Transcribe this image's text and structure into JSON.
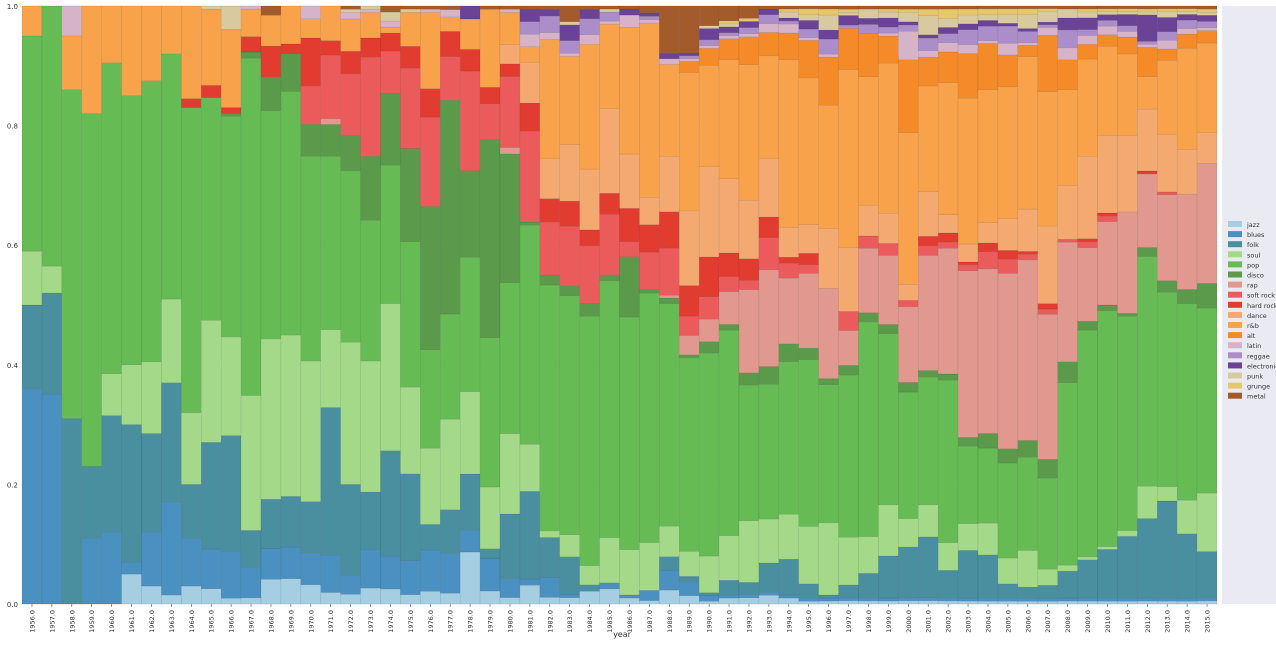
{
  "chart_data": {
    "type": "bar",
    "stacked": true,
    "normalized": true,
    "xlabel": "year",
    "ylabel": "",
    "ylim": [
      0,
      1
    ],
    "yticks": [
      "0.0",
      "0.2",
      "0.4",
      "0.6",
      "0.8",
      "1.0"
    ],
    "legend_position": "right",
    "grid": true,
    "categories": [
      "1956.0",
      "1957.0",
      "1958.0",
      "1959.0",
      "1960.0",
      "1961.0",
      "1962.0",
      "1963.0",
      "1964.0",
      "1965.0",
      "1966.0",
      "1967.0",
      "1968.0",
      "1969.0",
      "1970.0",
      "1971.0",
      "1972.0",
      "1973.0",
      "1974.0",
      "1975.0",
      "1976.0",
      "1977.0",
      "1978.0",
      "1979.0",
      "1980.0",
      "1981.0",
      "1982.0",
      "1983.0",
      "1984.0",
      "1985.0",
      "1986.0",
      "1987.0",
      "1988.0",
      "1989.0",
      "1990.0",
      "1991.0",
      "1992.0",
      "1993.0",
      "1994.0",
      "1995.0",
      "1996.0",
      "1997.0",
      "1998.0",
      "1999.0",
      "2000.0",
      "2001.0",
      "2002.0",
      "2003.0",
      "2004.0",
      "2005.0",
      "2006.0",
      "2007.0",
      "2008.0",
      "2009.0",
      "2010.0",
      "2011.0",
      "2012.0",
      "2013.0",
      "2014.0",
      "2015.0"
    ],
    "series": [
      {
        "name": "jazz",
        "color": "#a6cee3",
        "values": [
          0,
          0,
          0,
          0,
          0,
          0.05,
          0.03,
          0.015,
          0.03,
          0.025,
          0.01,
          0.01,
          0.04,
          0.04,
          0.03,
          0.02,
          0.015,
          0.025,
          0.025,
          0.015,
          0.02,
          0.015,
          0.06,
          0.02,
          0.01,
          0.03,
          0.01,
          0.01,
          0.02,
          0.025,
          0.01,
          0.005,
          0.025,
          0.015,
          0.005,
          0.01,
          0.01,
          0.015,
          0.01,
          0.005,
          0.005,
          0.005,
          0.005,
          0.005,
          0.005,
          0.005,
          0.005,
          0.005,
          0.005,
          0.005,
          0.005,
          0.005,
          0.005,
          0.005,
          0.005,
          0.005,
          0.005,
          0.005,
          0.005,
          0.005
        ]
      },
      {
        "name": "blues",
        "color": "#4a90c0",
        "values": [
          0.36,
          0.35,
          0,
          0.11,
          0.12,
          0.02,
          0.09,
          0.155,
          0.08,
          0.065,
          0.08,
          0.05,
          0.05,
          0.05,
          0.05,
          0.065,
          0.03,
          0.06,
          0.055,
          0.055,
          0.065,
          0.055,
          0.025,
          0.05,
          0.03,
          0.01,
          0.03,
          0.005,
          0,
          0.01,
          0.005,
          0.015,
          0.035,
          0.025,
          0.01,
          0.005,
          0.005,
          0.005,
          0.005,
          0.005,
          0.005,
          0.005,
          0.005,
          0.005,
          0.005,
          0.005,
          0.005,
          0.005,
          0.005,
          0.005,
          0.005,
          0.005,
          0.005,
          0.005,
          0.005,
          0.005,
          0.005,
          0.005,
          0.005,
          0.005
        ]
      },
      {
        "name": "folk",
        "color": "#4a8fa0",
        "values": [
          0.14,
          0.17,
          0.31,
          0.12,
          0.195,
          0.23,
          0.165,
          0.2,
          0.09,
          0.175,
          0.2,
          0.06,
          0.08,
          0.08,
          0.08,
          0.255,
          0.14,
          0.09,
          0.175,
          0.14,
          0.04,
          0.06,
          0.065,
          0.015,
          0.1,
          0.14,
          0.06,
          0.06,
          0.01,
          0,
          0,
          0,
          0.025,
          0.01,
          0.005,
          0.025,
          0.02,
          0.05,
          0.06,
          0.025,
          0.005,
          0.02,
          0.04,
          0.07,
          0.08,
          0.095,
          0.045,
          0.08,
          0.075,
          0.025,
          0.02,
          0.025,
          0.045,
          0.065,
          0.085,
          0.11,
          0.135,
          0.17,
          0.115,
          0.075
        ]
      },
      {
        "name": "soul",
        "color": "#a4d98a",
        "values": [
          0.09,
          0.045,
          0,
          0,
          0.07,
          0.1,
          0.12,
          0.14,
          0.12,
          0.2,
          0.17,
          0.22,
          0.26,
          0.255,
          0.22,
          0.135,
          0.22,
          0.205,
          0.245,
          0.14,
          0.12,
          0.125,
          0.095,
          0.095,
          0.125,
          0.075,
          0.01,
          0.035,
          0.03,
          0.075,
          0.075,
          0.07,
          0.055,
          0.045,
          0.065,
          0.075,
          0.1,
          0.075,
          0.075,
          0.1,
          0.12,
          0.075,
          0.06,
          0.085,
          0.045,
          0.05,
          0.045,
          0.045,
          0.055,
          0.045,
          0.065,
          0.03,
          0.01,
          0.005,
          0.005,
          0.01,
          0.055,
          0.025,
          0.06,
          0.095
        ]
      },
      {
        "name": "pop",
        "color": "#66bb55",
        "values": [
          0.36,
          0.435,
          0.55,
          0.59,
          0.52,
          0.45,
          0.47,
          0.41,
          0.51,
          0.365,
          0.38,
          0.55,
          0.37,
          0.385,
          0.32,
          0.3,
          0.265,
          0.22,
          0.23,
          0.235,
          0.155,
          0.145,
          0.155,
          0.23,
          0.235,
          0.35,
          0.37,
          0.38,
          0.39,
          0.425,
          0.385,
          0.365,
          0.4,
          0.35,
          0.36,
          0.345,
          0.22,
          0.23,
          0.255,
          0.29,
          0.23,
          0.255,
          0.35,
          0.285,
          0.2,
          0.2,
          0.265,
          0.13,
          0.13,
          0.165,
          0.165,
          0.17,
          0.305,
          0.385,
          0.41,
          0.38,
          0.39,
          0.34,
          0.35,
          0.3
        ]
      },
      {
        "name": "disco",
        "color": "#5b9a4b",
        "values": [
          0,
          0,
          0,
          0,
          0,
          0,
          0,
          0,
          0,
          0,
          0.005,
          0.01,
          0.055,
          0.06,
          0.05,
          0.055,
          0.055,
          0.1,
          0.12,
          0.15,
          0.225,
          0.295,
          0.1,
          0.305,
          0.2,
          0.005,
          0.015,
          0.015,
          0.02,
          0.01,
          0.1,
          0.005,
          0.01,
          0.005,
          0.02,
          0.01,
          0.02,
          0.03,
          0.03,
          0.02,
          0.01,
          0.015,
          0.015,
          0.015,
          0.015,
          0.01,
          0.01,
          0.015,
          0.025,
          0.025,
          0.03,
          0.035,
          0.035,
          0.015,
          0.01,
          0.005,
          0.015,
          0.02,
          0.025,
          0.04
        ]
      },
      {
        "name": "rap",
        "color": "#e0988f",
        "values": [
          0,
          0,
          0,
          0,
          0,
          0,
          0,
          0,
          0,
          0,
          0,
          0,
          0,
          0,
          0,
          0.01,
          0,
          0,
          0,
          0,
          0,
          0,
          0,
          0,
          0.01,
          0,
          0,
          0,
          0,
          0,
          0,
          0,
          0.005,
          0.035,
          0.04,
          0.055,
          0.135,
          0.165,
          0.11,
          0.13,
          0.15,
          0.055,
          0.105,
          0.115,
          0.12,
          0.18,
          0.205,
          0.28,
          0.285,
          0.305,
          0.32,
          0.27,
          0.2,
          0.125,
          0.145,
          0.18,
          0.125,
          0.15,
          0.17,
          0.195
        ]
      },
      {
        "name": "soft rock",
        "color": "#eb5b5c",
        "values": [
          0,
          0,
          0,
          0,
          0,
          0,
          0,
          0,
          0,
          0,
          0,
          0,
          0,
          0,
          0.06,
          0.11,
          0.095,
          0.155,
          0.07,
          0.13,
          0.14,
          0.06,
          0.115,
          0.055,
          0.11,
          0.145,
          0.08,
          0.095,
          0.09,
          0.1,
          0.025,
          0.055,
          0.085,
          0.035,
          0.04,
          0.025,
          0.015,
          0.055,
          0.025,
          0.015,
          0,
          0.03,
          0.02,
          0.02,
          0.01,
          0.015,
          0.01,
          0.01,
          0.03,
          0.025,
          0.01,
          0.01,
          0.005,
          0.01,
          0.01,
          0,
          0,
          0.005,
          0,
          0
        ]
      },
      {
        "name": "hard rock",
        "color": "#e23c30",
        "values": [
          0,
          0,
          0,
          0,
          0,
          0,
          0,
          0,
          0.015,
          0.02,
          0.01,
          0.025,
          0.05,
          0.015,
          0.075,
          0.025,
          0.035,
          0.03,
          0.03,
          0.035,
          0.045,
          0.035,
          0.025,
          0.025,
          0.02,
          0.045,
          0.035,
          0.04,
          0.025,
          0.035,
          0.055,
          0.04,
          0.065,
          0.055,
          0.07,
          0.04,
          0.035,
          0.035,
          0.01,
          0.02,
          0,
          0,
          0,
          0,
          0,
          0.015,
          0.015,
          0.005,
          0.015,
          0.015,
          0.005,
          0.01,
          0,
          0.005,
          0.005,
          0,
          0.005,
          0,
          0,
          0
        ]
      },
      {
        "name": "dance",
        "color": "#f3a970",
        "values": [
          0,
          0,
          0,
          0,
          0,
          0,
          0,
          0,
          0,
          0,
          0,
          0,
          0,
          0,
          0,
          0,
          0,
          0,
          0,
          0,
          0,
          0,
          0,
          0,
          0.03,
          0.065,
          0.06,
          0.09,
          0.095,
          0.14,
          0.09,
          0.04,
          0.1,
          0.135,
          0.16,
          0.125,
          0.095,
          0.1,
          0.05,
          0.05,
          0.1,
          0.1,
          0.05,
          0.05,
          0.025,
          0.07,
          0.03,
          0.03,
          0.035,
          0.055,
          0.075,
          0.145,
          0.09,
          0.14,
          0.135,
          0.135,
          0.105,
          0.1,
          0.08,
          0.05
        ]
      },
      {
        "name": "r&b",
        "color": "#f9a24c",
        "values": [
          0.05,
          0.0,
          0.09,
          0.18,
          0.095,
          0.15,
          0.125,
          0.08,
          0.155,
          0.125,
          0.135,
          0.045,
          0.05,
          0.06,
          0.03,
          0.06,
          0.05,
          0.04,
          0.01,
          0.055,
          0.12,
          0.02,
          0.035,
          0.12,
          0.05,
          0.025,
          0.18,
          0.14,
          0.195,
          0.14,
          0.21,
          0.255,
          0.165,
          0.25,
          0.18,
          0.2,
          0.22,
          0.175,
          0.28,
          0.255,
          0.205,
          0.28,
          0.21,
          0.25,
          0.24,
          0.165,
          0.215,
          0.245,
          0.23,
          0.23,
          0.27,
          0.25,
          0.16,
          0.165,
          0.155,
          0.145,
          0.055,
          0.13,
          0.18,
          0.145
        ]
      },
      {
        "name": "alt",
        "color": "#f58a29",
        "values": [
          0,
          0,
          0,
          0,
          0,
          0,
          0,
          0,
          0,
          0,
          0,
          0,
          0,
          0,
          0,
          0,
          0,
          0,
          0,
          0,
          0,
          0,
          0,
          0,
          0,
          0,
          0,
          0,
          0,
          0,
          0,
          0,
          0,
          0.02,
          0.03,
          0.035,
          0.045,
          0.04,
          0.045,
          0.065,
          0.08,
          0.065,
          0.07,
          0.045,
          0.115,
          0.045,
          0.05,
          0.075,
          0.08,
          0.055,
          0.02,
          0.105,
          0.05,
          0.025,
          0.02,
          0.03,
          0.05,
          0.02,
          0.025,
          0.02
        ]
      },
      {
        "name": "latin",
        "color": "#d7b3c9",
        "values": [
          0,
          0,
          0.05,
          0,
          0,
          0,
          0,
          0,
          0,
          0,
          0,
          0.005,
          0,
          0,
          0.02,
          0,
          0.01,
          0.005,
          0.01,
          0,
          0.005,
          0.01,
          0,
          0,
          0.005,
          0.02,
          0.01,
          0.005,
          0.015,
          0.005,
          0.02,
          0.005,
          0.01,
          0.005,
          0.005,
          0.005,
          0.005,
          0.015,
          0.015,
          0.005,
          0.005,
          0,
          0,
          0.005,
          0.045,
          0.01,
          0.015,
          0.015,
          0.005,
          0.02,
          0.005,
          0.015,
          0.02,
          0.015,
          0.015,
          0.01,
          0.005,
          0.015,
          0.01,
          0.005
        ]
      },
      {
        "name": "reggae",
        "color": "#ab8dc9",
        "values": [
          0,
          0,
          0,
          0,
          0,
          0,
          0,
          0,
          0,
          0,
          0,
          0,
          0,
          0,
          0,
          0,
          0,
          0,
          0,
          0,
          0,
          0,
          0,
          0,
          0,
          0.02,
          0.025,
          0.02,
          0.025,
          0.015,
          0,
          0.005,
          0,
          0.005,
          0.01,
          0.005,
          0.01,
          0.015,
          0.005,
          0.015,
          0.025,
          0.005,
          0.015,
          0.01,
          0.01,
          0.02,
          0.015,
          0.025,
          0.025,
          0.03,
          0.02,
          0.005,
          0.03,
          0.01,
          0.01,
          0.01,
          0.005,
          0.015,
          0.015,
          0.01
        ]
      },
      {
        "name": "electronic",
        "color": "#6a4396",
        "values": [
          0,
          0,
          0,
          0,
          0,
          0,
          0,
          0,
          0,
          0,
          0,
          0,
          0,
          0,
          0,
          0,
          0,
          0,
          0,
          0,
          0,
          0,
          0.015,
          0,
          0,
          0.02,
          0.01,
          0.025,
          0.015,
          0,
          0.01,
          0.005,
          0.01,
          0.005,
          0.02,
          0.01,
          0.01,
          0.01,
          0.005,
          0.015,
          0.015,
          0.015,
          0.01,
          0.015,
          0.005,
          0.005,
          0.01,
          0.01,
          0.01,
          0.005,
          0.005,
          0.005,
          0.02,
          0.02,
          0.01,
          0.02,
          0.045,
          0.025,
          0.01,
          0.01
        ]
      },
      {
        "name": "punk",
        "color": "#d8c99f",
        "values": [
          0,
          0,
          0,
          0,
          0,
          0,
          0,
          0,
          0,
          0.005,
          0.04,
          0,
          0,
          0,
          0,
          0,
          0.005,
          0.005,
          0.015,
          0.005,
          0,
          0,
          0,
          0,
          0,
          0,
          0,
          0.005,
          0,
          0.005,
          0,
          0,
          0,
          0,
          0.005,
          0.005,
          0,
          0,
          0.01,
          0.01,
          0.025,
          0.005,
          0.015,
          0.01,
          0.015,
          0.03,
          0.015,
          0.015,
          0.01,
          0.015,
          0.025,
          0.02,
          0.015,
          0.01,
          0.005,
          0.005,
          0.005,
          0.01,
          0.005,
          0.005
        ]
      },
      {
        "name": "grunge",
        "color": "#e6c76a",
        "values": [
          0,
          0,
          0,
          0,
          0,
          0,
          0,
          0,
          0,
          0,
          0,
          0,
          0,
          0,
          0,
          0,
          0,
          0,
          0,
          0,
          0,
          0,
          0,
          0,
          0,
          0,
          0,
          0,
          0,
          0,
          0,
          0,
          0,
          0,
          0,
          0.005,
          0.005,
          0,
          0.005,
          0.01,
          0.01,
          0.005,
          0,
          0.005,
          0.005,
          0.01,
          0.015,
          0.01,
          0.01,
          0.01,
          0.01,
          0.005,
          0,
          0.005,
          0.005,
          0.005,
          0.005,
          0.005,
          0.005,
          0.005
        ]
      },
      {
        "name": "metal",
        "color": "#a35b2c",
        "values": [
          0,
          0,
          0,
          0,
          0,
          0,
          0,
          0,
          0,
          0,
          0,
          0,
          0.015,
          0,
          0,
          0,
          0.005,
          0,
          0.01,
          0.005,
          0.005,
          0.005,
          0,
          0.005,
          0.005,
          0.005,
          0.005,
          0.025,
          0.005,
          0.005,
          0.005,
          0.01,
          0.085,
          0.085,
          0.035,
          0.025,
          0.02,
          0.005,
          0.005,
          0.005,
          0.005,
          0.005,
          0.005,
          0.005,
          0.005,
          0.005,
          0.005,
          0.005,
          0.005,
          0.005,
          0.005,
          0.005,
          0.005,
          0.005,
          0.005,
          0.005,
          0.005,
          0.005,
          0.005,
          0.005
        ]
      }
    ]
  }
}
